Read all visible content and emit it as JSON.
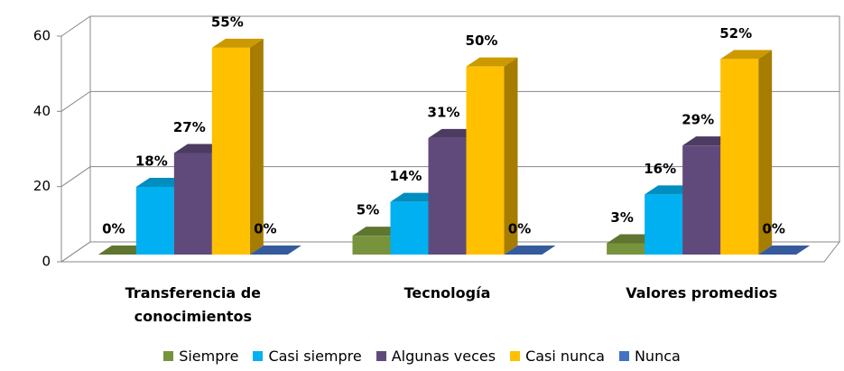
{
  "chart_data": {
    "type": "bar3d",
    "categories": [
      "Transferencia de conocimientos",
      "Tecnología",
      "Valores promedios"
    ],
    "series": [
      {
        "name": "Siempre",
        "color": "#77933c",
        "values": [
          0,
          5,
          3
        ],
        "value_labels": [
          "0%",
          "5%",
          "3%"
        ]
      },
      {
        "name": "Casi siempre",
        "color": "#00b0f0",
        "values": [
          18,
          14,
          16
        ],
        "value_labels": [
          "18%",
          "14%",
          "16%"
        ]
      },
      {
        "name": "Algunas veces",
        "color": "#604a7b",
        "values": [
          27,
          31,
          29
        ],
        "value_labels": [
          "27%",
          "31%",
          "29%"
        ]
      },
      {
        "name": "Casi nunca",
        "color": "#ffc000",
        "values": [
          55,
          50,
          52
        ],
        "value_labels": [
          "55%",
          "50%",
          "52%"
        ]
      },
      {
        "name": "Nunca",
        "color": "#4472c4",
        "values": [
          0,
          0,
          0
        ],
        "value_labels": [
          "0%",
          "0%",
          "0%"
        ]
      }
    ],
    "ylim": [
      0,
      60
    ],
    "yticks": [
      0,
      20,
      40,
      60
    ],
    "grid": true,
    "legend": "bottom"
  }
}
